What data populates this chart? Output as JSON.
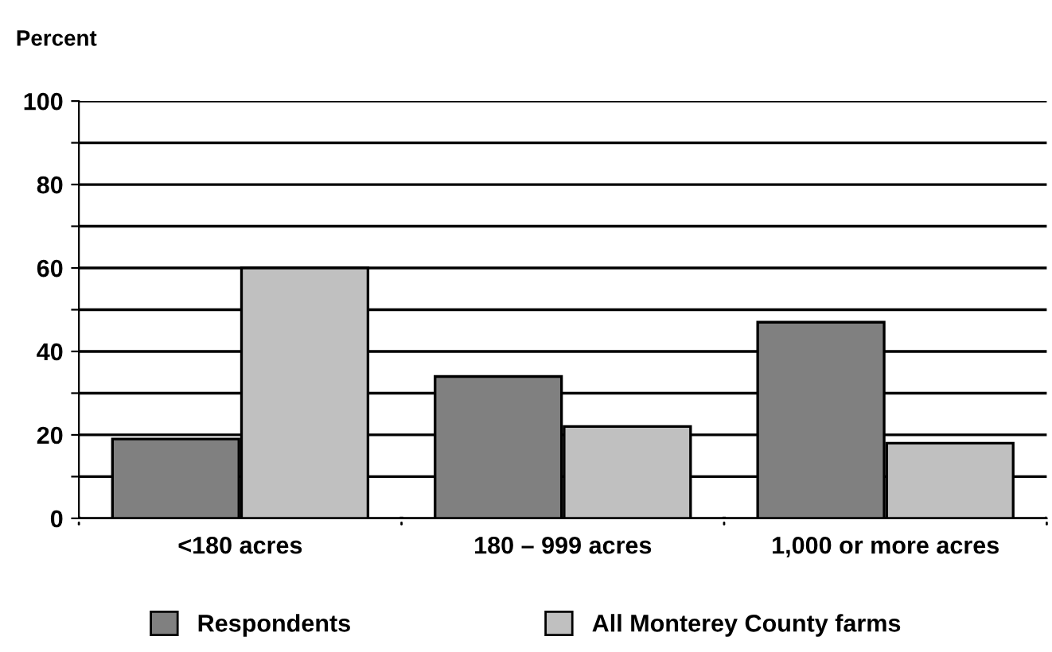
{
  "chart_data": {
    "type": "bar",
    "ylabel": "Percent",
    "categories": [
      "<180 acres",
      "180 – 999 acres",
      "1,000 or more acres"
    ],
    "series": [
      {
        "name": "Respondents",
        "color": "#808080",
        "values": [
          19,
          34,
          47
        ]
      },
      {
        "name": "All Monterey County farms",
        "color": "#c0c0c0",
        "values": [
          60,
          22,
          18
        ]
      }
    ],
    "ylim": [
      0,
      100
    ],
    "yticks": [
      0,
      {
        "value": 10,
        "label": null
      },
      20,
      {
        "value": 30,
        "label": null
      },
      40,
      {
        "value": 50,
        "label": null
      },
      60,
      {
        "value": 70,
        "label": null
      },
      80,
      {
        "value": 90,
        "label": null
      },
      100
    ],
    "grid": "y",
    "legend": "bottom"
  }
}
